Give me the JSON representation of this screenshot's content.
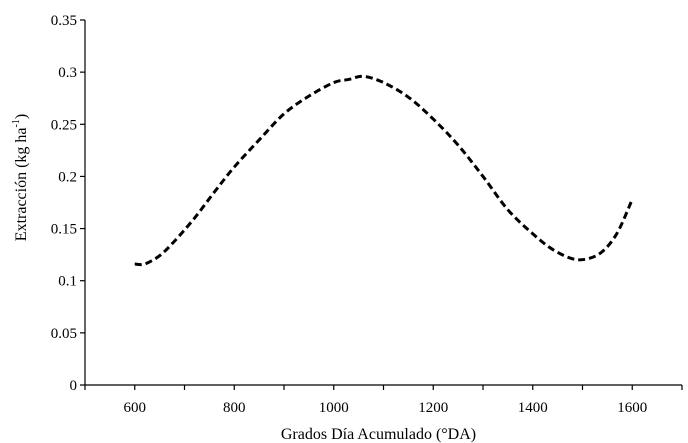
{
  "chart_data": {
    "type": "line",
    "title": "",
    "xlabel": "Grados Día Acumulado (°DA)",
    "ylabel_main": "Extracción (kg ha",
    "ylabel_sup": "-1",
    "ylabel_end": ")",
    "xlim": [
      500,
      1700
    ],
    "ylim": [
      0,
      0.35
    ],
    "x_ticks": [
      600,
      800,
      1000,
      1200,
      1400,
      1600
    ],
    "y_ticks": [
      0,
      0.05,
      0.1,
      0.15,
      0.2,
      0.25,
      0.3,
      0.35
    ],
    "y_tick_labels": [
      "0",
      "0.05",
      "0.1",
      "0.15",
      "0.2",
      "0.25",
      "0.3",
      "0.35"
    ],
    "x_tick_labels": [
      "600",
      "800",
      "1000",
      "1200",
      "1400",
      "1600"
    ],
    "grid": false,
    "series": [
      {
        "line_style": "dashed",
        "color": "#000000",
        "x": [
          600,
          620,
          650,
          680,
          720,
          760,
          800,
          850,
          900,
          950,
          1000,
          1030,
          1060,
          1100,
          1150,
          1200,
          1250,
          1300,
          1350,
          1400,
          1440,
          1480,
          1510,
          1540,
          1570,
          1600
        ],
        "y": [
          0.116,
          0.116,
          0.124,
          0.138,
          0.16,
          0.185,
          0.209,
          0.235,
          0.26,
          0.277,
          0.29,
          0.293,
          0.296,
          0.29,
          0.276,
          0.255,
          0.23,
          0.2,
          0.168,
          0.145,
          0.13,
          0.121,
          0.121,
          0.128,
          0.146,
          0.178
        ]
      }
    ]
  }
}
